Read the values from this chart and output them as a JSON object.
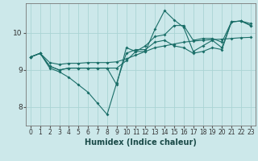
{
  "title": "",
  "xlabel": "Humidex (Indice chaleur)",
  "ylabel": "",
  "bg_color": "#cce8ea",
  "grid_color": "#b0d8d8",
  "line_color": "#1a6e68",
  "xlim": [
    -0.5,
    23.5
  ],
  "ylim": [
    7.5,
    10.8
  ],
  "yticks": [
    8,
    9,
    10
  ],
  "xticks": [
    0,
    1,
    2,
    3,
    4,
    5,
    6,
    7,
    8,
    9,
    10,
    11,
    12,
    13,
    14,
    15,
    16,
    17,
    18,
    19,
    20,
    21,
    22,
    23
  ],
  "series": [
    {
      "x": [
        0,
        1,
        2,
        3,
        4,
        5,
        6,
        7,
        8,
        9,
        10,
        11,
        12,
        13,
        14,
        15,
        16,
        17,
        18,
        19,
        20,
        21,
        22,
        23
      ],
      "y": [
        9.35,
        9.45,
        9.2,
        9.15,
        9.18,
        9.18,
        9.2,
        9.2,
        9.2,
        9.22,
        9.3,
        9.4,
        9.5,
        9.6,
        9.65,
        9.7,
        9.75,
        9.78,
        9.8,
        9.82,
        9.83,
        9.85,
        9.87,
        9.88
      ]
    },
    {
      "x": [
        0,
        1,
        2,
        3,
        4,
        5,
        6,
        7,
        8,
        9,
        10,
        11,
        12,
        13,
        14,
        15,
        16,
        17,
        18,
        19,
        20,
        21,
        22,
        23
      ],
      "y": [
        9.35,
        9.45,
        9.05,
        8.95,
        8.8,
        8.6,
        8.4,
        8.1,
        7.8,
        8.65,
        9.45,
        9.55,
        9.55,
        9.75,
        9.8,
        9.65,
        9.6,
        9.45,
        9.5,
        9.6,
        9.55,
        10.3,
        10.32,
        10.2
      ]
    },
    {
      "x": [
        0,
        1,
        2,
        3,
        4,
        5,
        6,
        7,
        8,
        9,
        10,
        11,
        12,
        13,
        14,
        15,
        16,
        17,
        18,
        19,
        20,
        21,
        22,
        23
      ],
      "y": [
        9.35,
        9.45,
        9.1,
        9.0,
        9.05,
        9.05,
        9.05,
        9.05,
        9.05,
        9.05,
        9.25,
        9.5,
        9.65,
        9.9,
        9.95,
        10.2,
        10.2,
        9.8,
        9.85,
        9.85,
        9.75,
        10.3,
        10.32,
        10.25
      ]
    },
    {
      "x": [
        0,
        1,
        2,
        3,
        4,
        5,
        6,
        7,
        8,
        9,
        10,
        11,
        12,
        13,
        14,
        15,
        16,
        17,
        18,
        19,
        20,
        21,
        22,
        23
      ],
      "y": [
        9.35,
        9.45,
        9.1,
        9.0,
        9.05,
        9.05,
        9.05,
        9.05,
        9.05,
        8.6,
        9.6,
        9.5,
        9.5,
        10.1,
        10.6,
        10.35,
        10.15,
        9.5,
        9.65,
        9.8,
        9.6,
        10.3,
        10.32,
        10.2
      ]
    }
  ]
}
